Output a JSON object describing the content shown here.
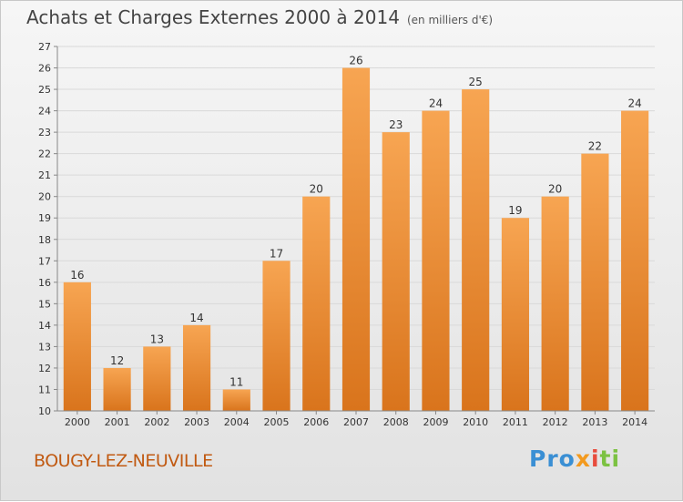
{
  "header": {
    "title": "Achats et Charges Externes 2000 à 2014",
    "unit": "(en milliers d'€)"
  },
  "footer": {
    "location": "BOUGY-LEZ-NEUVILLE",
    "logo": [
      "Pro",
      "x",
      "i",
      "ti"
    ]
  },
  "colors": {
    "bar_light": "#f7a552",
    "bar_dark": "#d9741c",
    "grid": "#d9d9d9",
    "location_text": "#c15a12"
  },
  "chart_data": {
    "type": "bar",
    "title": "Achats et Charges Externes 2000 à 2014",
    "subtitle": "(en milliers d'€)",
    "categories": [
      "2000",
      "2001",
      "2002",
      "2003",
      "2004",
      "2005",
      "2006",
      "2007",
      "2008",
      "2009",
      "2010",
      "2011",
      "2012",
      "2013",
      "2014"
    ],
    "values": [
      16,
      12,
      13,
      14,
      11,
      17,
      20,
      26,
      23,
      24,
      25,
      19,
      20,
      22,
      24
    ],
    "ylim": [
      10,
      27
    ],
    "yticks": [
      10,
      11,
      12,
      13,
      14,
      15,
      16,
      17,
      18,
      19,
      20,
      21,
      22,
      23,
      24,
      25,
      26,
      27
    ],
    "grid": true,
    "data_labels": true
  }
}
